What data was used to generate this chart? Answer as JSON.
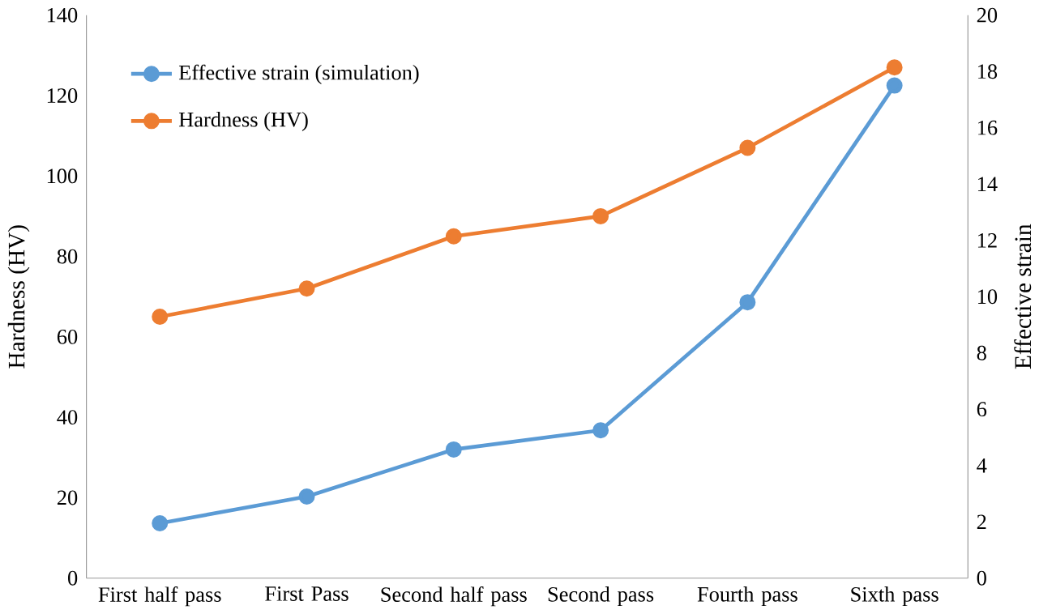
{
  "chart_data": {
    "type": "line",
    "categories": [
      "First half pass",
      "First Pass",
      "Second half pass",
      "Second pass",
      "Fourth pass",
      "Sixth pass"
    ],
    "series": [
      {
        "name": "Effective strain (simulation)",
        "color": "#5b9bd5",
        "axis": "y2",
        "values": [
          1.95,
          2.9,
          4.57,
          5.25,
          9.8,
          17.5
        ]
      },
      {
        "name": "Hardness (HV)",
        "color": "#ed7d31",
        "values": [
          65,
          72,
          85,
          90,
          107,
          127
        ]
      }
    ],
    "ylabel": "Hardness (HV)",
    "y2label": "Effective strain",
    "ylim": [
      0,
      140
    ],
    "yticks": [
      0,
      20,
      40,
      60,
      80,
      100,
      120,
      140
    ],
    "y2lim": [
      0,
      20
    ],
    "y2ticks": [
      0,
      2,
      4,
      6,
      8,
      10,
      12,
      14,
      16,
      18,
      20
    ],
    "legend": "top left",
    "grid": false,
    "marker": "circle",
    "line_style": "solid"
  }
}
